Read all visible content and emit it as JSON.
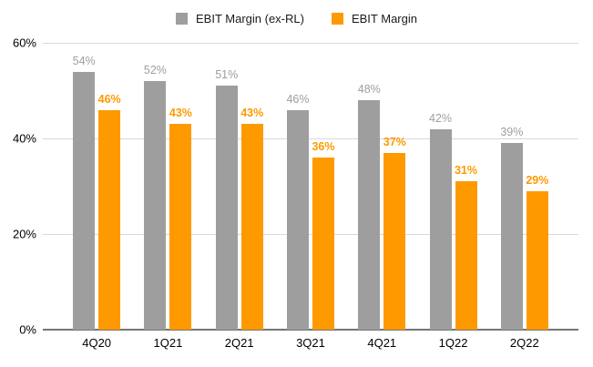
{
  "chart_data": {
    "type": "bar",
    "categories": [
      "4Q20",
      "1Q21",
      "2Q21",
      "3Q21",
      "4Q21",
      "1Q22",
      "2Q22"
    ],
    "series": [
      {
        "name": "EBIT Margin (ex-RL)",
        "color": "#9e9e9e",
        "values": [
          54,
          52,
          51,
          46,
          48,
          42,
          39
        ],
        "labels": [
          "54%",
          "52%",
          "51%",
          "46%",
          "48%",
          "42%",
          "39%"
        ]
      },
      {
        "name": "EBIT Margin",
        "color": "#ff9900",
        "values": [
          46,
          43,
          43,
          36,
          37,
          31,
          29
        ],
        "labels": [
          "46%",
          "43%",
          "43%",
          "36%",
          "37%",
          "31%",
          "29%"
        ]
      }
    ],
    "title": "",
    "xlabel": "",
    "ylabel": "",
    "ylim": [
      0,
      60
    ],
    "yticks": [
      "0%",
      "20%",
      "40%",
      "60%"
    ],
    "grid": true,
    "legend_position": "top",
    "colors": {
      "gridline": "#d9d9d9",
      "axis_line": "#757575",
      "axis_text": "#000000"
    }
  }
}
